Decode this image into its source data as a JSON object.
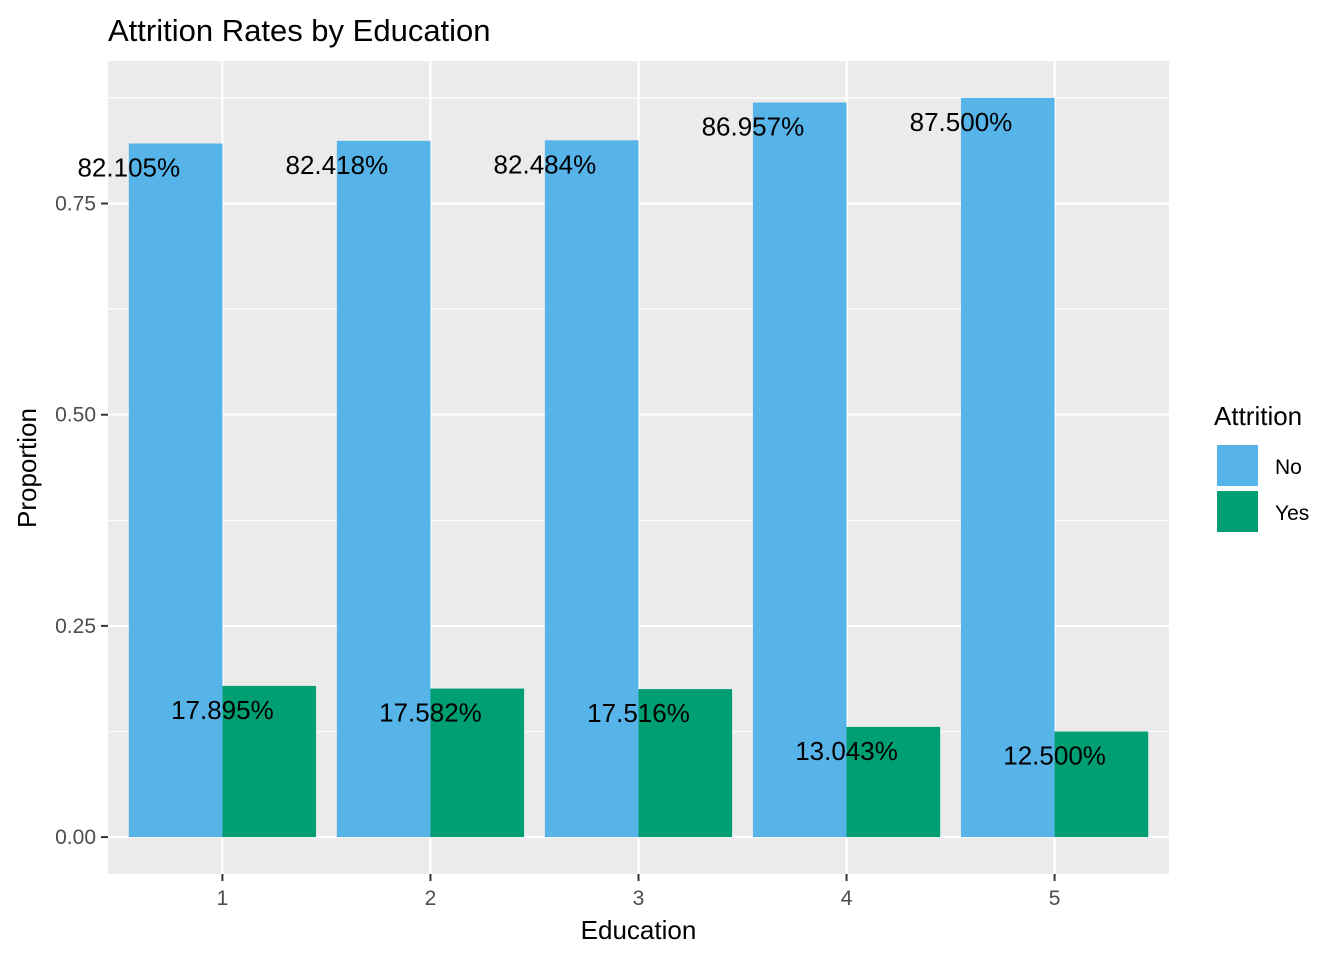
{
  "chart_data": {
    "type": "bar",
    "title": "Attrition Rates by Education",
    "xlabel": "Education",
    "ylabel": "Proportion",
    "categories": [
      "1",
      "2",
      "3",
      "4",
      "5"
    ],
    "series": [
      {
        "name": "No",
        "color": "#56B4E9",
        "values": [
          0.82105,
          0.82418,
          0.82484,
          0.86957,
          0.875
        ],
        "labels": [
          "82.105%",
          "82.418%",
          "82.484%",
          "86.957%",
          "87.500%"
        ]
      },
      {
        "name": "Yes",
        "color": "#009E73",
        "values": [
          0.17895,
          0.17582,
          0.17516,
          0.13043,
          0.125
        ],
        "labels": [
          "17.895%",
          "17.582%",
          "17.516%",
          "13.043%",
          "12.500%"
        ]
      }
    ],
    "ylim": [
      -0.0437,
      0.9187
    ],
    "yticks": [
      0,
      0.25,
      0.5,
      0.75
    ],
    "ytick_labels": [
      "0.00",
      "0.25",
      "0.50",
      "0.75"
    ],
    "legend": {
      "title": "Attrition",
      "position": "right"
    },
    "grid": true,
    "panel_background": "#EBEBEB"
  }
}
